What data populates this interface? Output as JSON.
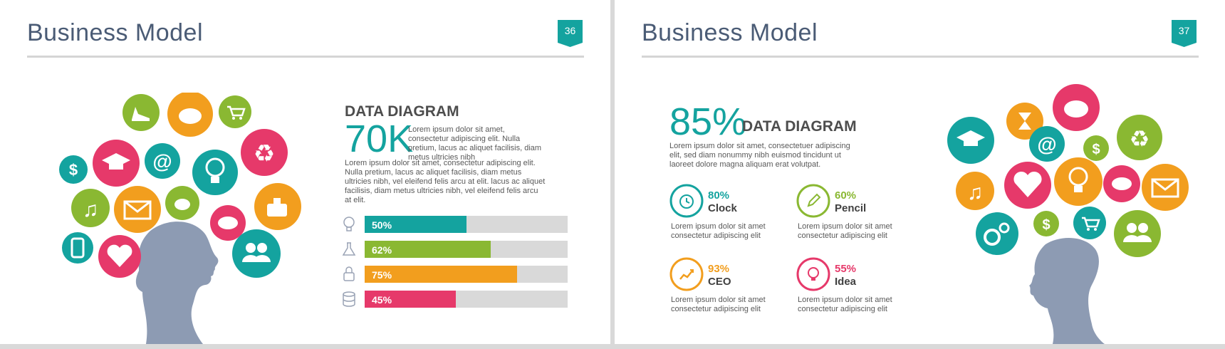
{
  "colors": {
    "teal": "#14a39f",
    "green": "#8ab832",
    "orange": "#f29e1e",
    "pink": "#e6396a",
    "silhouette": "#8d9bb3",
    "title": "#4a5b75"
  },
  "slide_a": {
    "title": "Business Model",
    "page_number": "36",
    "heading": "DATA DIAGRAM",
    "big_number": "70K",
    "intro_text": "Lorem ipsum dolor sit amet, consectetur adipiscing elit. Nulla  pretium,  lacus ac aliquet facilisis, diam metus ultricies nibh",
    "body_text": "Lorem ipsum dolor sit amet, consectetur adipiscing elit. Nulla  pretium, lacus ac aliquet facilisis, diam metus ultricies nibh,  vel eleifend felis arcu at elit. lacus ac aliquet facilisis, diam metus ultricies nibh, vel eleifend felis arcu at elit.",
    "bars": [
      {
        "label": "50%",
        "value": 50,
        "color": "#14a39f",
        "icon": "lightbulb-icon"
      },
      {
        "label": "62%",
        "value": 62,
        "color": "#8ab832",
        "icon": "flask-icon"
      },
      {
        "label": "75%",
        "value": 75,
        "color": "#f29e1e",
        "icon": "lock-icon"
      },
      {
        "label": "45%",
        "value": 45,
        "color": "#e6396a",
        "icon": "database-icon"
      }
    ],
    "bubble_icons": [
      "shoe-icon",
      "piggy-bank-icon",
      "cart-icon",
      "dollar-icon",
      "graduation-cap-icon",
      "at-icon",
      "recycle-icon",
      "lightbulb-icon",
      "music-icon",
      "mail-icon",
      "bird-icon",
      "perfume-icon",
      "chat-icon",
      "phone-icon",
      "heart-icon",
      "people-icon"
    ]
  },
  "slide_b": {
    "title": "Business Model",
    "page_number": "37",
    "big_number": "85%",
    "heading": "DATA DIAGRAM",
    "intro_text": "Lorem ipsum dolor sit amet, consectetuer adipiscing elit, sed diam nonummy  nibh euismod tincidunt  ut laoreet dolore magna aliquam erat volutpat.",
    "stats": [
      {
        "pct": "80%",
        "name": "Clock",
        "desc": "Lorem ipsum dolor sit amet consectetur  adipiscing elit",
        "color": "#14a39f",
        "icon": "alarm-clock-icon"
      },
      {
        "pct": "60%",
        "name": "Pencil",
        "desc": "Lorem ipsum dolor sit amet consectetur  adipiscing elit",
        "color": "#8ab832",
        "icon": "pencil-icon"
      },
      {
        "pct": "93%",
        "name": "CEO",
        "desc": "Lorem ipsum dolor sit amet consectetur  adipiscing elit",
        "color": "#f29e1e",
        "icon": "growth-chart-icon"
      },
      {
        "pct": "55%",
        "name": "Idea",
        "desc": "Lorem ipsum dolor sit amet consectetur  adipiscing elit",
        "color": "#e6396a",
        "icon": "idea-icon"
      }
    ],
    "bubble_icons": [
      "piggy-bank-icon",
      "hourglass-icon",
      "graduation-cap-icon",
      "at-icon",
      "dollar-icon",
      "recycle-icon",
      "music-icon",
      "heart-icon",
      "lightbulb-icon",
      "chat-icon",
      "mail-icon",
      "gears-icon",
      "dollar-icon",
      "cart-icon",
      "people-icon"
    ]
  }
}
